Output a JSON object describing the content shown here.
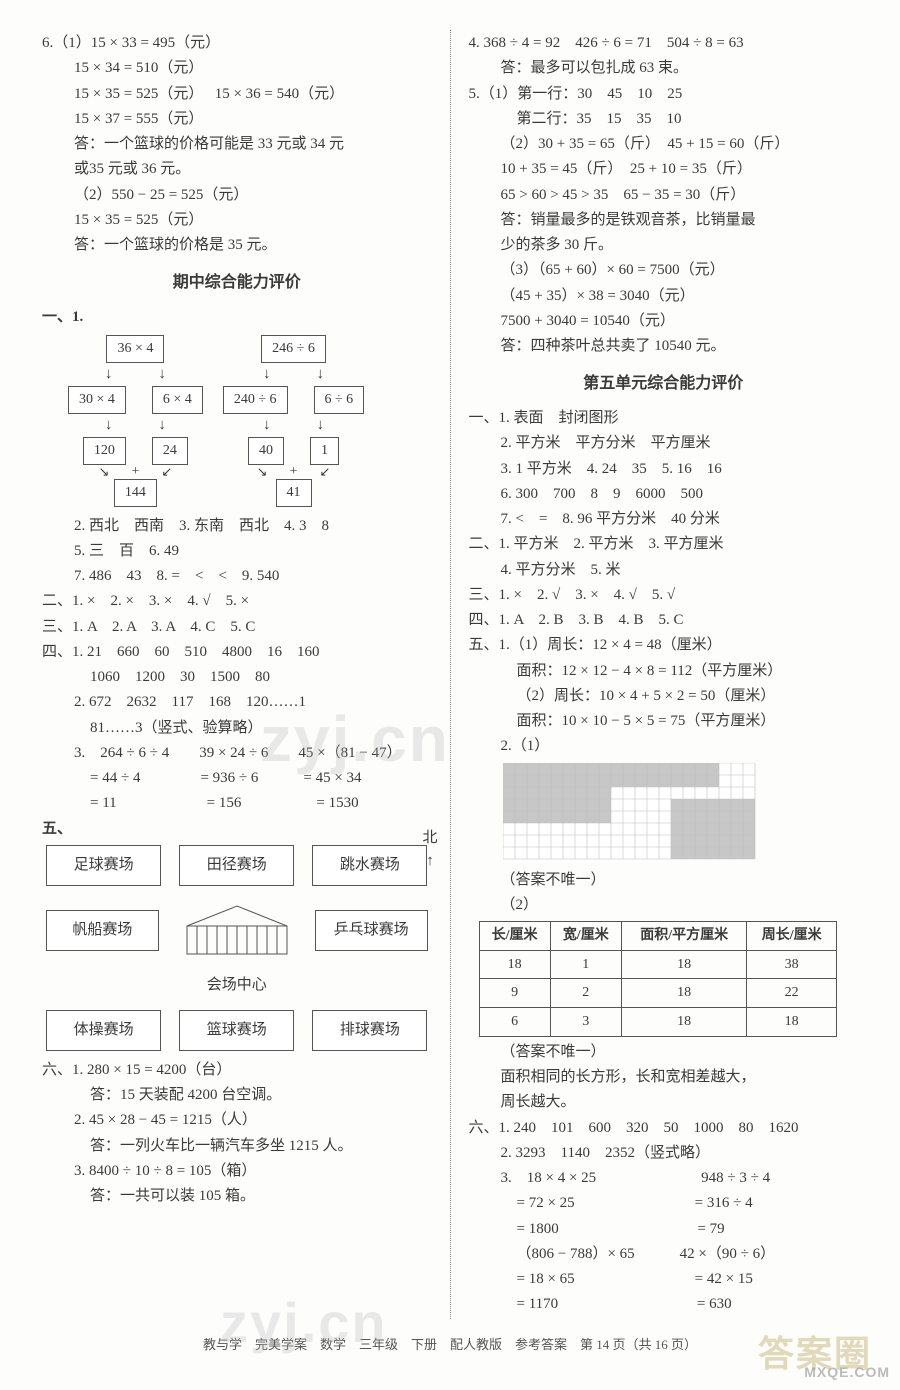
{
  "left": {
    "q6": {
      "l1": "6.（1）15 × 33 = 495（元）",
      "l2": "15 × 34 = 510（元）",
      "l3a": "15 × 35 = 525（元）",
      "l3b": "15 × 36 = 540（元）",
      "l4": "15 × 37 = 555（元）",
      "l5": "答：一个篮球的价格可能是 33 元或 34 元",
      "l6": "或35 元或 36 元。",
      "l7": "（2）550 − 25 = 525（元）",
      "l8": "15 × 35 = 525（元）",
      "l9": "答：一个篮球的价格是 35 元。"
    },
    "midterm_title": "期中综合能力评价",
    "s1_label": "一、1.",
    "flow": {
      "a_top": "36 × 4",
      "a_l": "30 × 4",
      "a_r": "6 × 4",
      "a_ll": "120",
      "a_rr": "24",
      "a_bot": "144",
      "b_top": "246 ÷ 6",
      "b_l": "240 ÷ 6",
      "b_r": "6 ÷ 6",
      "b_ll": "40",
      "b_rr": "1",
      "b_bot": "41",
      "plus": "+"
    },
    "s1_2": "2. 西北　西南　3. 东南　西北　4. 3　8",
    "s1_5": "5. 三　百　6. 49",
    "s1_7": "7. 486　43　8. =　<　<　9. 540",
    "s2": "二、1. ×　2. ×　3. ×　4. √　5. ×",
    "s3": "三、1. A　2. A　3. A　4. C　5. C",
    "s4_1a": "四、1. 21　660　60　510　4800　16　160",
    "s4_1b": "1060　1200　30　1500　80",
    "s4_2a": "2. 672　2632　117　168　120……1",
    "s4_2b": "81……3（竖式、验算略）",
    "s4_3h": "3.　264 ÷ 6 ÷ 4　　39 × 24 ÷ 6　　45 ×（81 − 47）",
    "s4_3a": "= 44 ÷ 4　　　　= 936 ÷ 6　　　= 45 × 34",
    "s4_3b": "= 11　　　　　　= 156　　　　　= 1530",
    "s5_label": "五、",
    "north": "北\n↑",
    "venues": {
      "r1": [
        "足球赛场",
        "田径赛场",
        "跳水赛场"
      ],
      "mid_l": "帆船赛场",
      "mid_r": "乒乓球赛场",
      "center_caption": "会场中心",
      "r3": [
        "体操赛场",
        "篮球赛场",
        "排球赛场"
      ]
    },
    "s6_1a": "六、1. 280 × 15 = 4200（台）",
    "s6_1b": "答：15 天装配 4200 台空调。",
    "s6_2a": "2. 45 × 28 − 45 = 1215（人）",
    "s6_2b": "答：一列火车比一辆汽车多坐 1215 人。",
    "s6_3a": "3. 8400 ÷ 10 ÷ 8 = 105（箱）",
    "s6_3b": "答：一共可以装 105 箱。"
  },
  "right": {
    "q4a": "4. 368 ÷ 4 = 92　426 ÷ 6 = 71　504 ÷ 8 = 63",
    "q4b": "答：最多可以包扎成 63 束。",
    "q5_1a": "5.（1）第一行：30　45　10　25",
    "q5_1b": "第二行：35　15　35　10",
    "q5_2a": "（2）30 + 35 = 65（斤）　45 + 15 = 60（斤）",
    "q5_2b": "10 + 35 = 45（斤）　25 + 10 = 35（斤）",
    "q5_2c": "65 > 60 > 45 > 35　65 − 35 = 30（斤）",
    "q5_2d": "答：销量最多的是铁观音茶，比销量最",
    "q5_2e": "少的茶多 30 斤。",
    "q5_3a": "（3）（65 + 60）× 60 = 7500（元）",
    "q5_3b": "（45 + 35）× 38 = 3040（元）",
    "q5_3c": "7500 + 3040 = 10540（元）",
    "q5_3d": "答：四种茶叶总共卖了 10540 元。",
    "u5_title": "第五单元综合能力评价",
    "u5_1_1": "一、1. 表面　封闭图形",
    "u5_1_2": "2. 平方米　平方分米　平方厘米",
    "u5_1_3": "3. 1 平方米　4. 24　35　5. 16　16",
    "u5_1_6": "6. 300　700　8　9　6000　500",
    "u5_1_7": "7. <　=　8. 96 平方分米　40 分米",
    "u5_2": "二、1. 平方米　2. 平方米　3. 平方厘米",
    "u5_2b": "4. 平方分米　5. 米",
    "u5_3": "三、1. ×　2. √　3. ×　4. √　5. √",
    "u5_4": "四、1. A　2. B　3. B　4. B　5. C",
    "u5_5_1a": "五、1.（1）周长：12 × 4 = 48（厘米）",
    "u5_5_1b": "面积：12 × 12 − 4 × 8 = 112（平方厘米）",
    "u5_5_1c": "（2）周长：10 × 4 + 5 × 2 = 50（厘米）",
    "u5_5_1d": "面积：10 × 10 − 5 × 5 = 75（平方厘米）",
    "u5_5_2": "2.（1）",
    "grid_colors": {
      "fill": "#c7c7c7",
      "line": "#bfbfbf",
      "bg": "#ffffff"
    },
    "note1": "（答案不唯一）",
    "u5_5_2b": "（2）",
    "table": {
      "headers": [
        "长/厘米",
        "宽/厘米",
        "面积/平方厘米",
        "周长/厘米"
      ],
      "rows": [
        [
          "18",
          "1",
          "18",
          "38"
        ],
        [
          "9",
          "2",
          "18",
          "22"
        ],
        [
          "6",
          "3",
          "18",
          "18"
        ]
      ]
    },
    "note2": "（答案不唯一）",
    "conclusion1": "面积相同的长方形，长和宽相差越大，",
    "conclusion2": "周长越大。",
    "u6_1": "六、1. 240　101　600　320　50　1000　80　1620",
    "u6_2": "2. 3293　1140　2352（竖式略）",
    "u6_3h": "3.　18 × 4 × 25　　　　　　　948 ÷ 3 ÷ 4",
    "u6_3a": "= 72 × 25　　　　　　　　= 316 ÷ 4",
    "u6_3b": "= 1800　　　　　　　　　 = 79",
    "u6_3c": "（806 − 788）× 65　　　42 ×（90 ÷ 6）",
    "u6_3d": "= 18 × 65　　　　　　　　= 42 × 15",
    "u6_3e": "= 1170　　　　　　　　　 = 630"
  },
  "footer": "教与学　完美学案　数学　三年级　下册　配人教版　参考答案　第 14 页（共 16 页）",
  "watermarks": {
    "w1": "zyj.cn",
    "w2": "zyj.cn",
    "w3": "答案圈",
    "w4": "MXQE.COM"
  }
}
